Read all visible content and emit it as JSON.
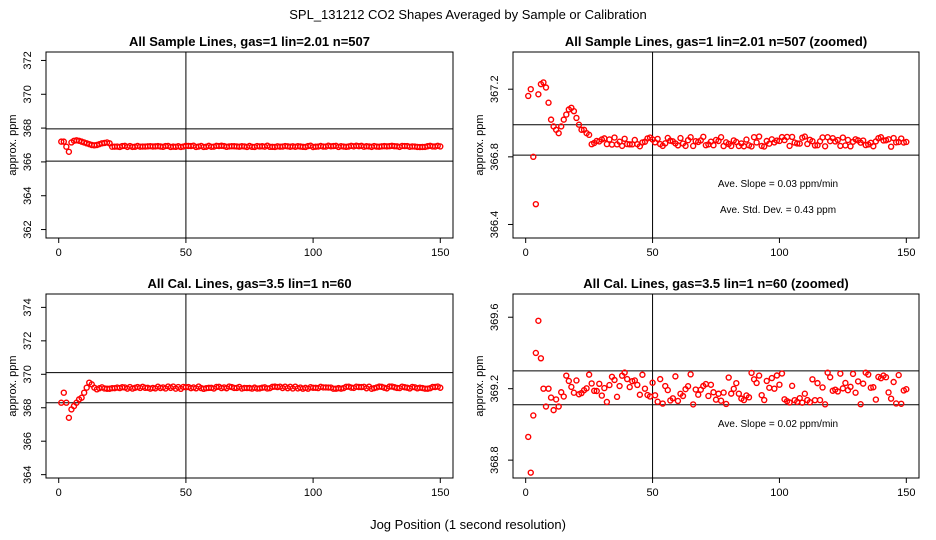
{
  "figure": {
    "title": "SPL_131212  CO2 Shapes Averaged by Sample or Calibration",
    "xlabel": "Jog Position (1 second resolution)"
  },
  "colors": {
    "points": "#ff0000",
    "axes": "#000000",
    "background": "#ffffff"
  },
  "chart_data": [
    {
      "type": "scatter",
      "title": "All Sample Lines, gas=1 lin=2.01 n=507",
      "ylabel": "approx. ppm",
      "xlim": [
        -5,
        155
      ],
      "ylim": [
        361.5,
        372.5
      ],
      "xticks": [
        0,
        50,
        100,
        150
      ],
      "yticks": [
        362,
        364,
        366,
        368,
        370,
        372
      ],
      "vline": 50,
      "hlines": [
        366.05,
        367.95
      ],
      "annotations": [],
      "y_head": [
        367.2,
        367.2,
        366.9,
        366.6,
        367.15,
        367.25,
        367.28,
        367.25,
        367.2,
        367.15,
        367.1,
        367.05,
        367.0,
        366.98,
        367.0,
        367.05,
        367.1,
        367.12,
        367.15,
        367.1
      ],
      "y_rest": 366.92,
      "y_jitter": 0.04,
      "seed": 11
    },
    {
      "type": "scatter",
      "title": "All Sample Lines, gas=1 lin=2.01 n=507 (zoomed)",
      "ylabel": "approx. ppm",
      "xlim": [
        -5,
        155
      ],
      "ylim": [
        366.32,
        367.42
      ],
      "xticks": [
        0,
        50,
        100,
        150
      ],
      "yticks": [
        366.4,
        366.8,
        367.2
      ],
      "vline": 50,
      "hlines": [
        366.99,
        366.81
      ],
      "annotations": [
        {
          "label": "Ave. Slope = ",
          "value": "0.03",
          "unit": "ppm/min"
        },
        {
          "label": "Ave. Std. Dev. = ",
          "value": "0.43",
          "unit": "ppm"
        }
      ],
      "y_head": [
        367.16,
        367.2,
        366.8,
        366.52,
        367.17,
        367.23,
        367.24,
        367.21,
        367.12,
        367.02,
        366.98,
        366.96,
        366.94,
        366.98,
        367.02,
        367.05,
        367.08,
        367.09,
        367.07,
        367.03,
        366.99,
        366.96,
        366.96,
        366.94,
        366.93
      ],
      "y_rest": 366.89,
      "y_jitter": 0.03,
      "seed": 23
    },
    {
      "type": "scatter",
      "title": "All Cal. Lines, gas=3.5 lin=1 n=60",
      "ylabel": "approx. ppm",
      "xlim": [
        -5,
        155
      ],
      "ylim": [
        363.8,
        374.8
      ],
      "xticks": [
        0,
        50,
        100,
        150
      ],
      "yticks": [
        364,
        366,
        368,
        370,
        372,
        374
      ],
      "vline": 50,
      "hlines": [
        370.1,
        368.3
      ],
      "annotations": [],
      "y_head": [
        368.3,
        368.9,
        368.3,
        367.4,
        367.9,
        368.1,
        368.3,
        368.5,
        368.6,
        368.9,
        369.2,
        369.5,
        369.4,
        369.2,
        369.1
      ],
      "y_rest": 369.2,
      "y_jitter": 0.07,
      "seed": 37
    },
    {
      "type": "scatter",
      "title": "All Cal. Lines, gas=3.5 lin=1 n=60 (zoomed)",
      "ylabel": "approx. ppm",
      "xlim": [
        -5,
        155
      ],
      "ylim": [
        368.7,
        369.73
      ],
      "xticks": [
        0,
        50,
        100,
        150
      ],
      "yticks": [
        368.8,
        369.2,
        369.6
      ],
      "vline": 50,
      "hlines": [
        369.3,
        369.11
      ],
      "annotations": [
        {
          "label": "Ave. Slope = ",
          "value": "0.02",
          "unit": "ppm/min"
        }
      ],
      "y_head": [
        368.93,
        368.73,
        369.05,
        369.4,
        369.58,
        369.37,
        369.2,
        369.1,
        369.2,
        369.15,
        369.08,
        369.14,
        369.1,
        369.18
      ],
      "y_rest": 369.2,
      "y_jitter": 0.09,
      "seed": 51
    }
  ]
}
